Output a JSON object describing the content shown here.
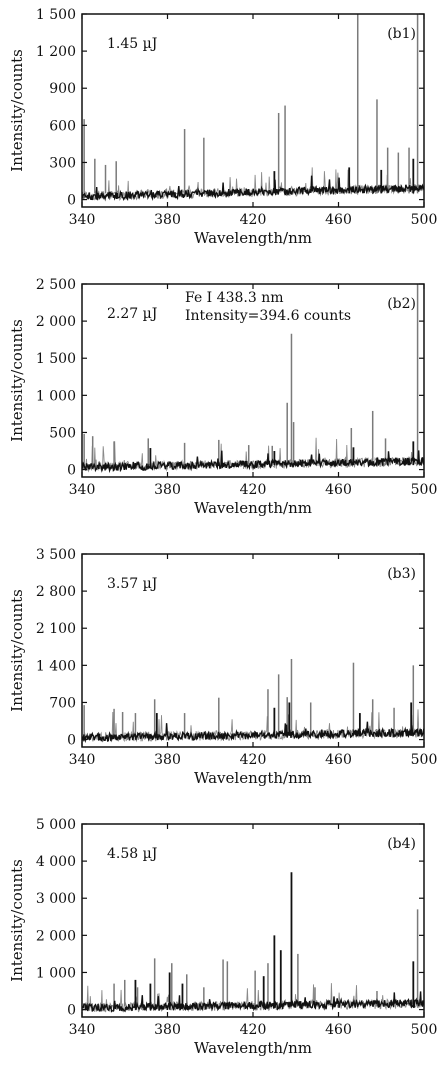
{
  "chart_data": [
    {
      "type": "line",
      "panel": "(b1)",
      "energy_label": "1.45 µJ",
      "annotation": [],
      "xlabel": "Wavelength/nm",
      "ylabel": "Intensity/counts",
      "xlim": [
        340,
        500
      ],
      "ylim": [
        -60,
        1500
      ],
      "xticks": [
        340,
        380,
        420,
        460,
        500
      ],
      "xtick_labels": [
        "340",
        "380",
        "420",
        "460",
        "500"
      ],
      "yticks": [
        0,
        300,
        600,
        900,
        1200,
        1500
      ],
      "ytick_labels": [
        "0",
        "300",
        "600",
        "900",
        "1 200",
        "1 500"
      ],
      "baseline": 50,
      "peaks_gray": [
        [
          341,
          650
        ],
        [
          346,
          330
        ],
        [
          351,
          280
        ],
        [
          356,
          310
        ],
        [
          388,
          570
        ],
        [
          397,
          500
        ],
        [
          432,
          700
        ],
        [
          435,
          760
        ],
        [
          469,
          1500
        ],
        [
          478,
          810
        ],
        [
          483,
          420
        ],
        [
          488,
          380
        ],
        [
          493,
          420
        ],
        [
          497,
          1500
        ]
      ],
      "peaks_black": [
        [
          430,
          230
        ],
        [
          465,
          260
        ],
        [
          480,
          240
        ],
        [
          495,
          330
        ]
      ]
    },
    {
      "type": "line",
      "panel": "(b2)",
      "energy_label": "2.27 µJ",
      "annotation": [
        "Fe I 438.3 nm",
        "Intensity=394.6 counts"
      ],
      "xlabel": "Wavelength/nm",
      "ylabel": "Intensity/counts",
      "xlim": [
        340,
        500
      ],
      "ylim": [
        -100,
        2500
      ],
      "xticks": [
        340,
        380,
        420,
        460,
        500
      ],
      "xtick_labels": [
        "340",
        "380",
        "420",
        "460",
        "500"
      ],
      "yticks": [
        0,
        500,
        1000,
        1500,
        2000,
        2500
      ],
      "ytick_labels": [
        "0",
        "500",
        "1 000",
        "1 500",
        "2 000",
        "2 500"
      ],
      "baseline": 60,
      "peaks_gray": [
        [
          341,
          480
        ],
        [
          345,
          450
        ],
        [
          355,
          380
        ],
        [
          371,
          420
        ],
        [
          388,
          360
        ],
        [
          404,
          400
        ],
        [
          418,
          330
        ],
        [
          429,
          320
        ],
        [
          436,
          900
        ],
        [
          438,
          1830
        ],
        [
          439,
          640
        ],
        [
          466,
          560
        ],
        [
          476,
          790
        ],
        [
          482,
          420
        ],
        [
          497,
          2500
        ]
      ],
      "peaks_black": [
        [
          372,
          290
        ],
        [
          430,
          250
        ],
        [
          467,
          300
        ],
        [
          495,
          380
        ]
      ]
    },
    {
      "type": "line",
      "panel": "(b3)",
      "energy_label": "3.57 µJ",
      "annotation": [],
      "xlabel": "Wavelength/nm",
      "ylabel": "Intensity/counts",
      "xlim": [
        340,
        500
      ],
      "ylim": [
        -140,
        3500
      ],
      "xticks": [
        340,
        380,
        420,
        460,
        500
      ],
      "xtick_labels": [
        "340",
        "380",
        "420",
        "460",
        "500"
      ],
      "yticks": [
        0,
        700,
        1400,
        2100,
        2800,
        3500
      ],
      "ytick_labels": [
        "0",
        "700",
        "1 400",
        "2 100",
        "2 800",
        "3 500"
      ],
      "baseline": 70,
      "peaks_gray": [
        [
          341,
          650
        ],
        [
          355,
          580
        ],
        [
          359,
          520
        ],
        [
          365,
          500
        ],
        [
          374,
          760
        ],
        [
          388,
          500
        ],
        [
          404,
          790
        ],
        [
          427,
          950
        ],
        [
          432,
          1230
        ],
        [
          436,
          800
        ],
        [
          438,
          1520
        ],
        [
          447,
          700
        ],
        [
          467,
          1450
        ],
        [
          476,
          760
        ],
        [
          486,
          600
        ],
        [
          495,
          1400
        ]
      ],
      "peaks_black": [
        [
          375,
          500
        ],
        [
          430,
          600
        ],
        [
          437,
          700
        ],
        [
          470,
          500
        ],
        [
          494,
          700
        ]
      ]
    },
    {
      "type": "line",
      "panel": "(b4)",
      "energy_label": "4.58 µJ",
      "annotation": [],
      "xlabel": "Wavelength/nm",
      "ylabel": "Intensity/counts",
      "xlim": [
        340,
        500
      ],
      "ylim": [
        -200,
        5000
      ],
      "xticks": [
        340,
        380,
        420,
        460,
        500
      ],
      "xtick_labels": [
        "340",
        "380",
        "420",
        "460",
        "500"
      ],
      "yticks": [
        0,
        1000,
        2000,
        3000,
        4000,
        5000
      ],
      "ytick_labels": [
        "0",
        "1 000",
        "2 000",
        "3 000",
        "4 000",
        "5 000"
      ],
      "baseline": 90,
      "peaks_gray": [
        [
          355,
          700
        ],
        [
          360,
          800
        ],
        [
          366,
          600
        ],
        [
          374,
          1380
        ],
        [
          382,
          1250
        ],
        [
          389,
          950
        ],
        [
          397,
          600
        ],
        [
          406,
          1350
        ],
        [
          408,
          1300
        ],
        [
          421,
          1050
        ],
        [
          427,
          1250
        ],
        [
          441,
          1500
        ],
        [
          449,
          600
        ],
        [
          478,
          500
        ],
        [
          497,
          2700
        ]
      ],
      "peaks_black": [
        [
          365,
          800
        ],
        [
          372,
          700
        ],
        [
          381,
          1000
        ],
        [
          387,
          700
        ],
        [
          425,
          900
        ],
        [
          430,
          2000
        ],
        [
          433,
          1600
        ],
        [
          438,
          3700
        ],
        [
          495,
          1300
        ]
      ]
    }
  ]
}
